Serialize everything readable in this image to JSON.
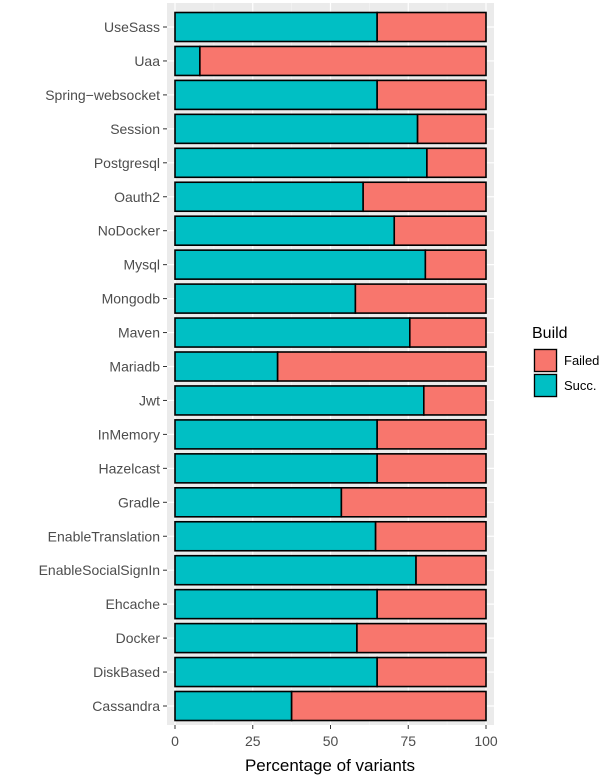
{
  "chart_data": {
    "type": "bar",
    "orientation": "horizontal",
    "stacked": true,
    "title": "",
    "xlabel": "Percentage of variants",
    "ylabel": "",
    "xlim": [
      0,
      100
    ],
    "xticks": [
      0,
      25,
      50,
      75,
      100
    ],
    "grid": true,
    "legend_position": "right",
    "legend_title": "Build",
    "categories": [
      "UseSass",
      "Uaa",
      "Spring−websocket",
      "Session",
      "Postgresql",
      "Oauth2",
      "NoDocker",
      "Mysql",
      "Mongodb",
      "Maven",
      "Mariadb",
      "Jwt",
      "InMemory",
      "Hazelcast",
      "Gradle",
      "EnableTranslation",
      "EnableSocialSignIn",
      "Ehcache",
      "Docker",
      "DiskBased",
      "Cassandra"
    ],
    "series": [
      {
        "name": "Succ.",
        "color": "#00bfc4",
        "values": [
          65,
          8,
          65,
          78,
          81,
          60.5,
          70.5,
          80.5,
          58,
          75.5,
          33,
          80,
          65,
          65,
          53.5,
          64.5,
          77.5,
          65,
          58.5,
          65,
          37.5
        ]
      },
      {
        "name": "Failed",
        "color": "#f8766d",
        "values": [
          35,
          92,
          35,
          22,
          19,
          39.5,
          29.5,
          19.5,
          42,
          24.5,
          67,
          20,
          35,
          35,
          46.5,
          35.5,
          22.5,
          35,
          41.5,
          35,
          62.5
        ]
      }
    ],
    "legend_order": [
      "Failed",
      "Succ."
    ]
  }
}
